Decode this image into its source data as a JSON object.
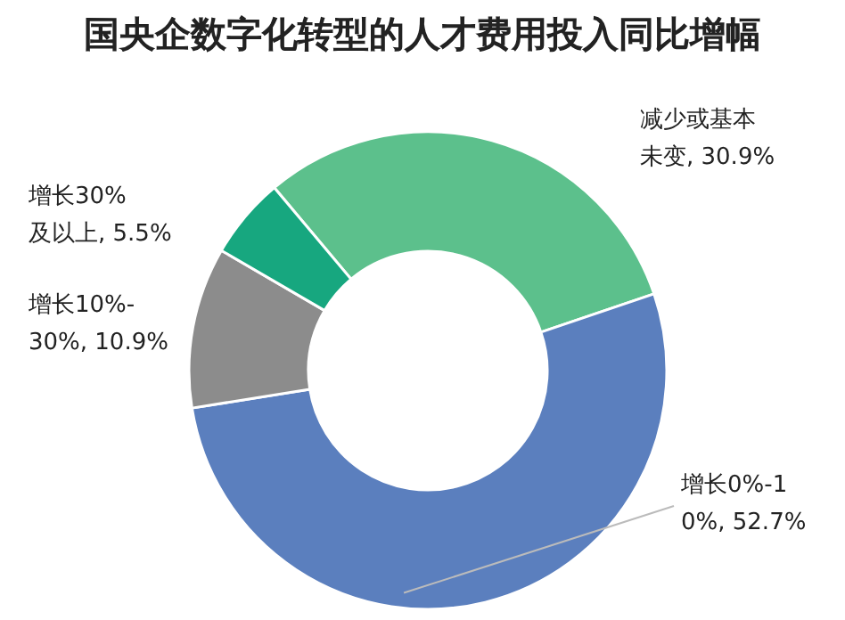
{
  "chart_data": {
    "type": "donut",
    "title": "国央企数字化转型的人才费用投入同比增幅",
    "categories": [
      "减少或基本未变",
      "增长0%-10%",
      "增长10%-30%",
      "增长30%及以上"
    ],
    "value_labels": [
      "30.9%",
      "52.7%",
      "10.9%",
      "5.5%"
    ],
    "values": [
      30.9,
      52.7,
      10.9,
      5.5
    ],
    "colors": [
      "#5cc08c",
      "#5b7fbe",
      "#8c8c8c",
      "#17a77f"
    ],
    "legend": false
  }
}
